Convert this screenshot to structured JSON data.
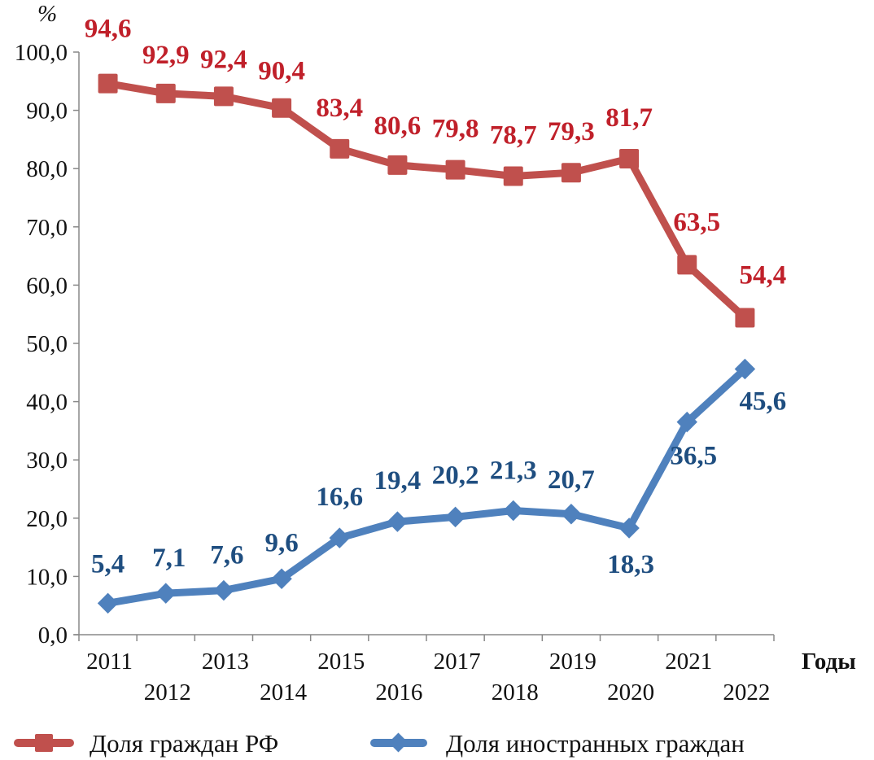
{
  "chart_data": {
    "type": "line",
    "title": "",
    "ylabel": "%",
    "xlabel": "Годы",
    "ylim": [
      0,
      100
    ],
    "y_ticks": [
      "0,0",
      "10,0",
      "20,0",
      "30,0",
      "40,0",
      "50,0",
      "60,0",
      "70,0",
      "80,0",
      "90,0",
      "100,0"
    ],
    "y_tick_values": [
      0,
      10,
      20,
      30,
      40,
      50,
      60,
      70,
      80,
      90,
      100
    ],
    "grid": false,
    "categories": [
      "2011",
      "2012",
      "2013",
      "2014",
      "2015",
      "2016",
      "2017",
      "2018",
      "2019",
      "2020",
      "2021",
      "2022"
    ],
    "series": [
      {
        "name": "Доля граждан РФ",
        "color": "#c0504d",
        "label_color": "#c0202a",
        "marker": "square",
        "values": [
          94.6,
          92.9,
          92.4,
          90.4,
          83.4,
          80.6,
          79.8,
          78.7,
          79.3,
          81.7,
          63.5,
          54.4
        ],
        "labels": [
          "94,6",
          "92,9",
          "92,4",
          "90,4",
          "83,4",
          "80,6",
          "79,8",
          "78,7",
          "79,3",
          "81,7",
          "63,5",
          "54,4"
        ]
      },
      {
        "name": "Доля иностранных граждан",
        "color": "#4f81bd",
        "label_color": "#1f4e80",
        "marker": "diamond",
        "values": [
          5.4,
          7.1,
          7.6,
          9.6,
          16.6,
          19.4,
          20.2,
          21.3,
          20.7,
          18.3,
          36.5,
          45.6
        ],
        "labels": [
          "5,4",
          "7,1",
          "7,6",
          "9,6",
          "16,6",
          "19,4",
          "20,2",
          "21,3",
          "20,7",
          "18,3",
          "36,5",
          "45,6"
        ]
      }
    ],
    "legend_position": "bottom"
  }
}
